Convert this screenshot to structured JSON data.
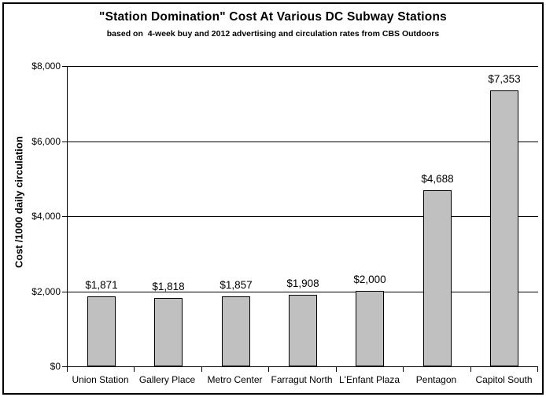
{
  "chart_data": {
    "type": "bar",
    "title": "\"Station Domination\" Cost At Various DC Subway Stations",
    "subtitle": "based on  4-week buy and 2012 advertising and circulation rates from CBS Outdoors",
    "xlabel": "",
    "ylabel": "Cost /1000 daily circulation",
    "categories": [
      "Union Station",
      "Gallery Place",
      "Metro Center",
      "Farragut North",
      "L'Enfant Plaza",
      "Pentagon",
      "Capitol South"
    ],
    "values": [
      1871,
      1818,
      1857,
      1908,
      2000,
      4688,
      7353
    ],
    "data_labels": [
      "$1,871",
      "$1,818",
      "$1,857",
      "$1,908",
      "$2,000",
      "$4,688",
      "$7,353"
    ],
    "ylim": [
      0,
      8000
    ],
    "yticks": [
      {
        "value": 0,
        "label": "$0"
      },
      {
        "value": 2000,
        "label": "$2,000"
      },
      {
        "value": 4000,
        "label": "$4,000"
      },
      {
        "value": 6000,
        "label": "$6,000"
      },
      {
        "value": 8000,
        "label": "$8,000"
      }
    ],
    "grid": true,
    "legend": "none",
    "bar_color": "#c0c0c0",
    "bar_border_color": "#000000",
    "axis_color": "#000000",
    "background_color": "#ffffff"
  }
}
